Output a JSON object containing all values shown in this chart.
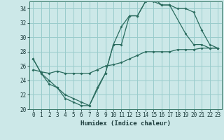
{
  "xlabel": "Humidex (Indice chaleur)",
  "bg_color": "#cce8e8",
  "grid_color": "#99cccc",
  "line_color": "#2a6b5e",
  "xlim": [
    -0.5,
    23.5
  ],
  "ylim": [
    20,
    35
  ],
  "yticks": [
    20,
    22,
    24,
    26,
    28,
    30,
    32,
    34
  ],
  "xticks": [
    0,
    1,
    2,
    3,
    4,
    5,
    6,
    7,
    8,
    9,
    10,
    11,
    12,
    13,
    14,
    15,
    16,
    17,
    18,
    19,
    20,
    21,
    22,
    23
  ],
  "line1_x": [
    0,
    1,
    2,
    3,
    4,
    5,
    6,
    7,
    8,
    9,
    10,
    11,
    12,
    13,
    14,
    15,
    16,
    17,
    18,
    19,
    20,
    21,
    22,
    23
  ],
  "line1_y": [
    27,
    25,
    23.5,
    23,
    21.5,
    21,
    20.5,
    20.5,
    23,
    25,
    29,
    29,
    33,
    33,
    35,
    35,
    34.5,
    34.5,
    34,
    34,
    33.5,
    31,
    29,
    28.5
  ],
  "line2_x": [
    0,
    1,
    2,
    3,
    4,
    5,
    6,
    7,
    9,
    10,
    11,
    12,
    13,
    14,
    15,
    16,
    17,
    19,
    20,
    21,
    22,
    23
  ],
  "line2_y": [
    27,
    25,
    24,
    23,
    22,
    21.5,
    21,
    20.5,
    25,
    29,
    31.5,
    33,
    33,
    35,
    35.5,
    34.5,
    34.5,
    30.5,
    29,
    29,
    28.5,
    28.5
  ],
  "line3_x": [
    0,
    1,
    2,
    3,
    4,
    5,
    6,
    7,
    8,
    9,
    10,
    11,
    12,
    13,
    14,
    15,
    16,
    17,
    18,
    19,
    20,
    21,
    22,
    23
  ],
  "line3_y": [
    25.5,
    25.2,
    25,
    25.3,
    25,
    25,
    25,
    25,
    25.5,
    26,
    26.2,
    26.5,
    27,
    27.5,
    28,
    28,
    28,
    28,
    28.3,
    28.3,
    28.3,
    28.5,
    28.5,
    28.5
  ]
}
